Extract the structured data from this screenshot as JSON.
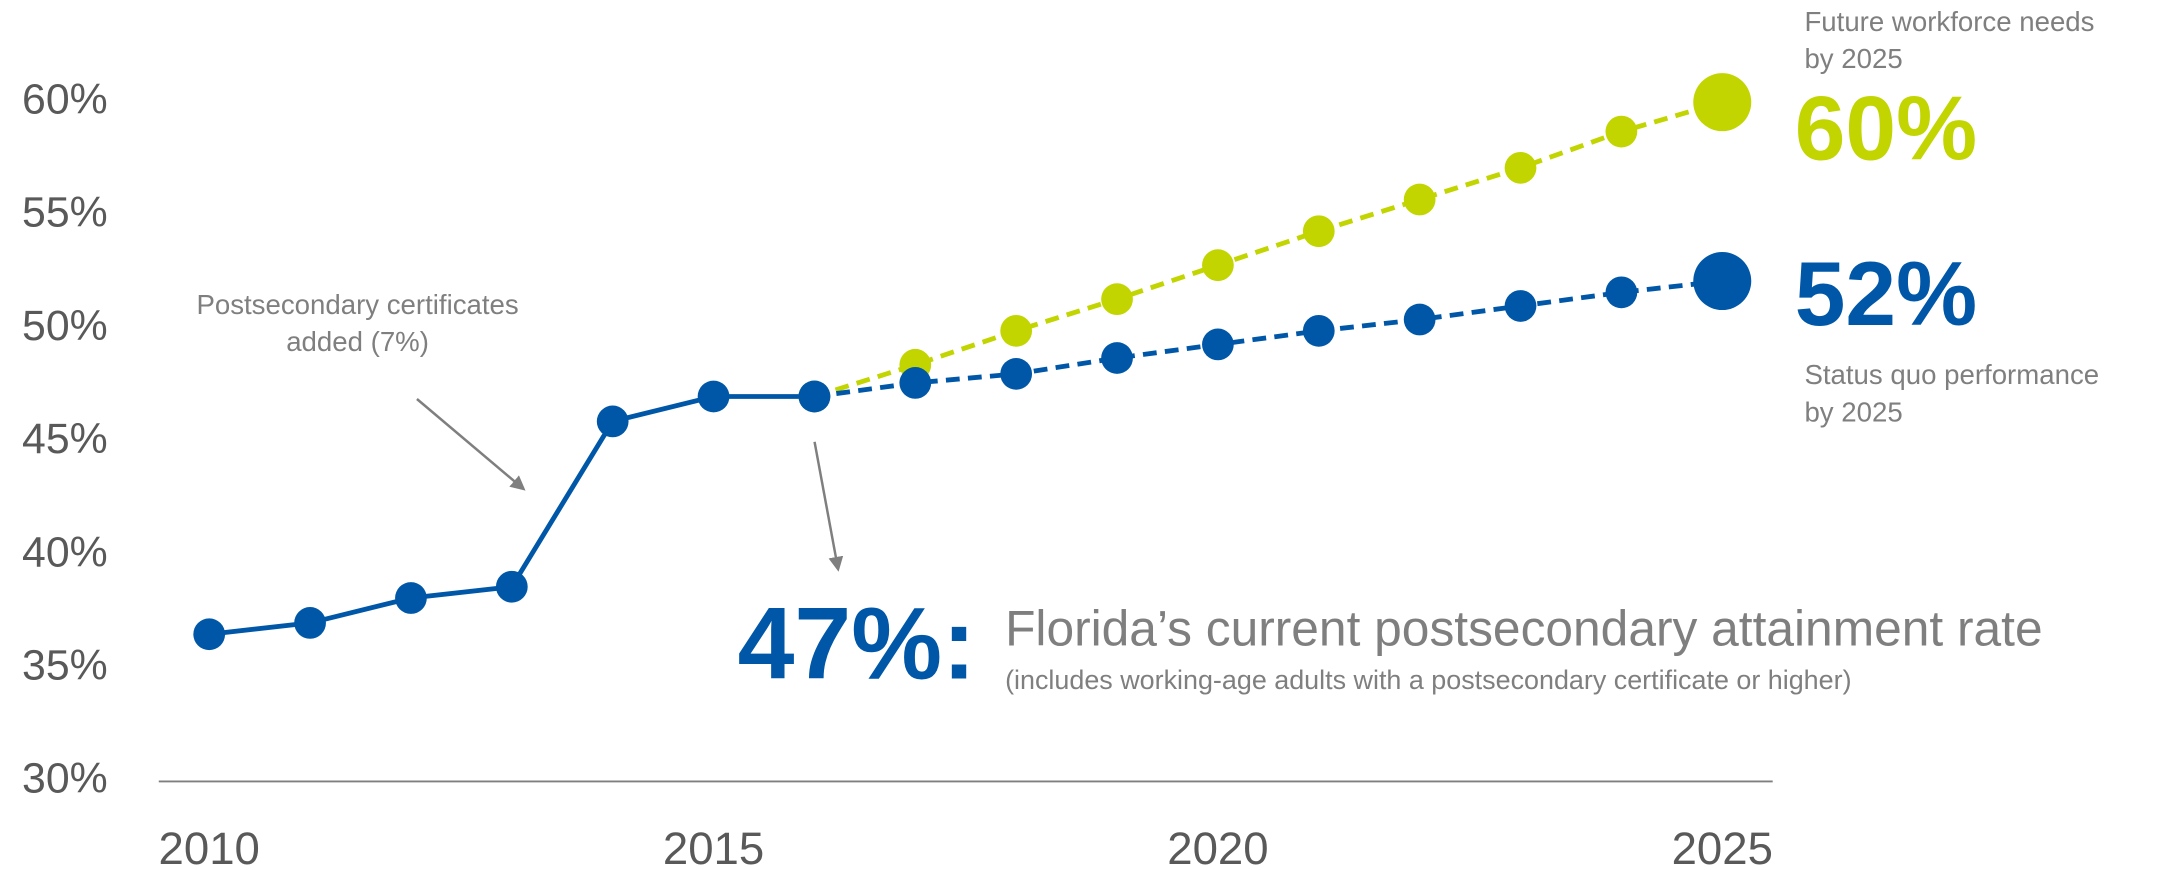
{
  "chart_data": {
    "type": "line",
    "xlim": [
      2009.5,
      2025.5
    ],
    "xticks": [
      2010,
      2015,
      2020,
      2025
    ],
    "ylim": [
      30,
      60
    ],
    "yticks": [
      {
        "value": 30,
        "label": "30%"
      },
      {
        "value": 35,
        "label": "35%"
      },
      {
        "value": 40,
        "label": "40%"
      },
      {
        "value": 45,
        "label": "45%"
      },
      {
        "value": 50,
        "label": "50%"
      },
      {
        "value": 55,
        "label": "55%"
      },
      {
        "value": 60,
        "label": "60%"
      }
    ],
    "series": [
      {
        "color": "#c2d500",
        "dashed": true,
        "x": [
          2016,
          2017,
          2018,
          2019,
          2020,
          2021,
          2022,
          2023,
          2024,
          2025
        ],
        "values": [
          47,
          48.4,
          49.9,
          51.3,
          52.8,
          54.3,
          55.7,
          57.1,
          58.7,
          60
        ]
      },
      {
        "color": "#0057a8",
        "dashed": true,
        "x": [
          2016,
          2017,
          2018,
          2019,
          2020,
          2021,
          2022,
          2023,
          2024,
          2025
        ],
        "values": [
          47,
          47.6,
          48.0,
          48.7,
          49.3,
          49.9,
          50.4,
          51.0,
          51.6,
          52.1
        ]
      },
      {
        "color": "#0057a8",
        "dashed": false,
        "x": [
          2010,
          2011,
          2012,
          2013,
          2014,
          2015,
          2016
        ],
        "values": [
          36.5,
          37,
          38.1,
          38.6,
          45.9,
          47,
          47
        ]
      }
    ],
    "annotations": {
      "certificates": [
        "Postsecondary certificates",
        "added (7%)"
      ],
      "future_label": [
        "Future workforce needs",
        "by 2025"
      ],
      "future_value": "60%",
      "status_value": "52%",
      "status_label": [
        "Status quo performance",
        "by 2025"
      ],
      "current_value": "47%:",
      "current_title": "Florida’s current postsecondary attainment rate",
      "current_note": "(includes working-age adults with a postsecondary certificate or higher)"
    }
  }
}
